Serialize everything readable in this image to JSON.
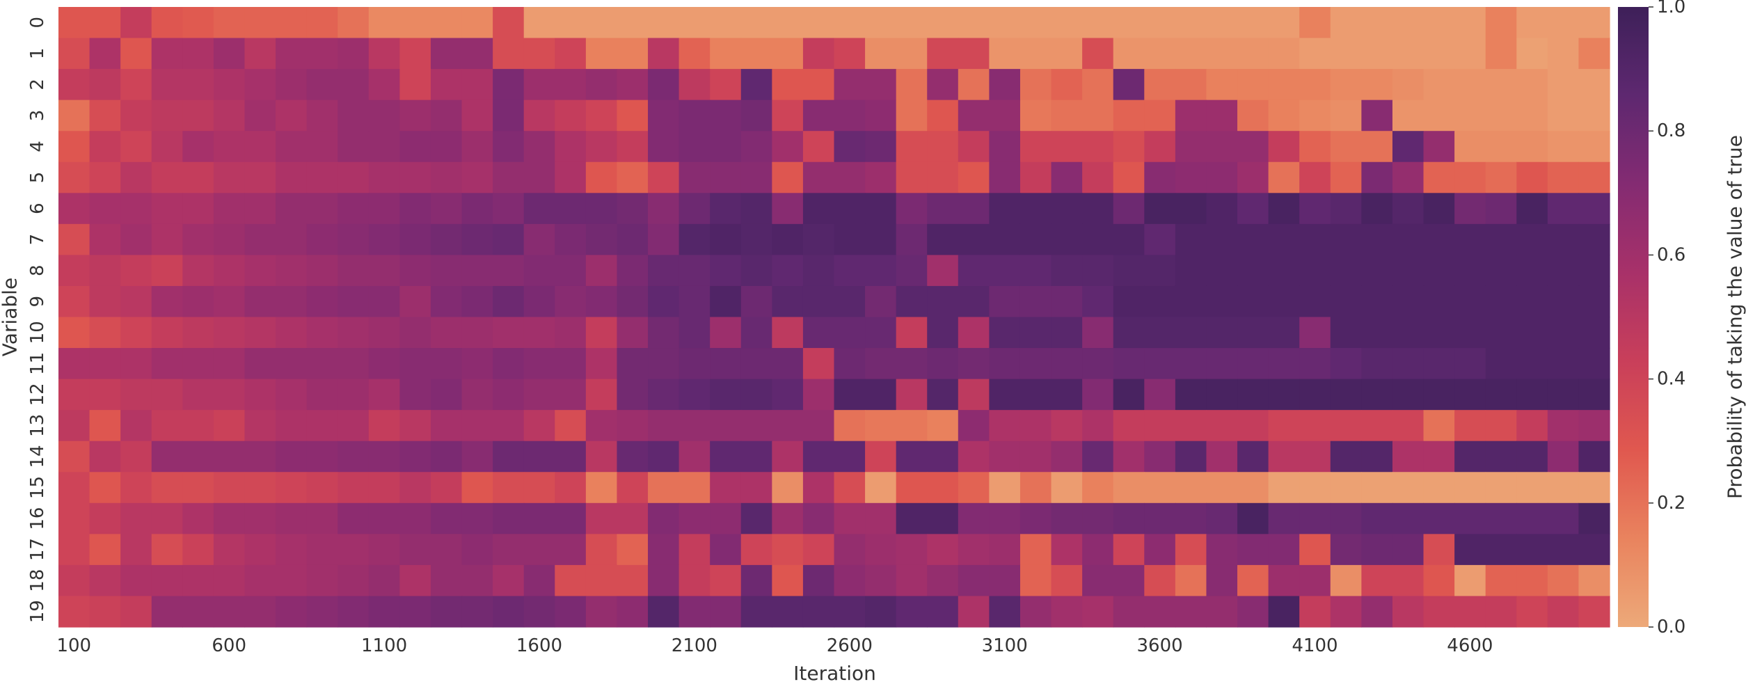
{
  "chart_data": {
    "type": "heatmap",
    "title": "",
    "xlabel": "Iteration",
    "ylabel": "Variable",
    "x_ticks": [
      "100",
      "600",
      "1100",
      "1600",
      "2100",
      "2600",
      "3100",
      "3600",
      "4100",
      "4600"
    ],
    "y_ticks": [
      "0",
      "1",
      "2",
      "3",
      "4",
      "5",
      "6",
      "7",
      "8",
      "9",
      "10",
      "11",
      "12",
      "13",
      "14",
      "15",
      "16",
      "17",
      "18",
      "19"
    ],
    "colorbar": {
      "label": "Probability of taking the value of true",
      "ticks": [
        "0.0",
        "0.2",
        "0.4",
        "0.6",
        "0.8",
        "1.0"
      ],
      "range": [
        0,
        1
      ],
      "colormap": "flare",
      "stops": [
        "#eda979",
        "#e9835e",
        "#e0584f",
        "#c93f5a",
        "#a83169",
        "#842b72",
        "#5e2870",
        "#3e2059"
      ]
    },
    "iterations": {
      "start": 100,
      "step": 100,
      "count": 50
    },
    "grid": false,
    "legend_position": "right",
    "matrix": [
      [
        0.3,
        0.3,
        0.45,
        0.3,
        0.28,
        0.25,
        0.25,
        0.25,
        0.25,
        0.2,
        0.12,
        0.12,
        0.12,
        0.12,
        0.35,
        0.05,
        0.05,
        0.05,
        0.05,
        0.05,
        0.05,
        0.05,
        0.05,
        0.05,
        0.05,
        0.05,
        0.05,
        0.05,
        0.05,
        0.05,
        0.05,
        0.05,
        0.05,
        0.05,
        0.05,
        0.05,
        0.05,
        0.05,
        0.05,
        0.05,
        0.15,
        0.05,
        0.05,
        0.05,
        0.05,
        0.05,
        0.15,
        0.05,
        0.05,
        0.05
      ],
      [
        0.35,
        0.55,
        0.3,
        0.55,
        0.55,
        0.62,
        0.5,
        0.6,
        0.6,
        0.62,
        0.5,
        0.4,
        0.65,
        0.65,
        0.35,
        0.35,
        0.4,
        0.15,
        0.15,
        0.5,
        0.25,
        0.15,
        0.15,
        0.15,
        0.45,
        0.4,
        0.1,
        0.1,
        0.38,
        0.38,
        0.08,
        0.08,
        0.08,
        0.35,
        0.08,
        0.08,
        0.08,
        0.08,
        0.08,
        0.08,
        0.05,
        0.05,
        0.05,
        0.05,
        0.05,
        0.05,
        0.15,
        0.03,
        0.05,
        0.15
      ],
      [
        0.45,
        0.48,
        0.4,
        0.52,
        0.52,
        0.55,
        0.58,
        0.62,
        0.65,
        0.65,
        0.58,
        0.4,
        0.55,
        0.55,
        0.75,
        0.62,
        0.62,
        0.65,
        0.62,
        0.75,
        0.48,
        0.4,
        0.85,
        0.3,
        0.3,
        0.65,
        0.65,
        0.2,
        0.65,
        0.2,
        0.7,
        0.2,
        0.25,
        0.2,
        0.8,
        0.2,
        0.2,
        0.15,
        0.15,
        0.15,
        0.15,
        0.12,
        0.12,
        0.1,
        0.08,
        0.08,
        0.08,
        0.08,
        0.05,
        0.05
      ],
      [
        0.2,
        0.35,
        0.45,
        0.48,
        0.48,
        0.52,
        0.6,
        0.55,
        0.6,
        0.65,
        0.65,
        0.62,
        0.65,
        0.55,
        0.75,
        0.5,
        0.45,
        0.4,
        0.3,
        0.72,
        0.75,
        0.75,
        0.78,
        0.4,
        0.7,
        0.7,
        0.68,
        0.2,
        0.3,
        0.65,
        0.65,
        0.18,
        0.2,
        0.2,
        0.25,
        0.25,
        0.62,
        0.62,
        0.2,
        0.15,
        0.12,
        0.1,
        0.7,
        0.08,
        0.08,
        0.08,
        0.08,
        0.08,
        0.05,
        0.05
      ],
      [
        0.3,
        0.45,
        0.4,
        0.5,
        0.58,
        0.55,
        0.55,
        0.6,
        0.6,
        0.65,
        0.65,
        0.68,
        0.68,
        0.62,
        0.72,
        0.65,
        0.55,
        0.5,
        0.45,
        0.72,
        0.75,
        0.75,
        0.72,
        0.6,
        0.4,
        0.82,
        0.8,
        0.35,
        0.35,
        0.45,
        0.7,
        0.4,
        0.4,
        0.4,
        0.35,
        0.45,
        0.65,
        0.65,
        0.65,
        0.45,
        0.25,
        0.2,
        0.2,
        0.85,
        0.65,
        0.1,
        0.1,
        0.1,
        0.08,
        0.08
      ],
      [
        0.35,
        0.4,
        0.5,
        0.45,
        0.45,
        0.5,
        0.5,
        0.55,
        0.55,
        0.55,
        0.58,
        0.58,
        0.6,
        0.58,
        0.65,
        0.65,
        0.55,
        0.3,
        0.25,
        0.4,
        0.7,
        0.7,
        0.7,
        0.3,
        0.65,
        0.65,
        0.62,
        0.35,
        0.35,
        0.3,
        0.7,
        0.45,
        0.7,
        0.45,
        0.3,
        0.7,
        0.68,
        0.68,
        0.62,
        0.2,
        0.4,
        0.25,
        0.75,
        0.65,
        0.25,
        0.25,
        0.22,
        0.3,
        0.25,
        0.25
      ],
      [
        0.55,
        0.58,
        0.58,
        0.55,
        0.55,
        0.6,
        0.6,
        0.65,
        0.65,
        0.68,
        0.68,
        0.72,
        0.7,
        0.75,
        0.72,
        0.8,
        0.8,
        0.8,
        0.78,
        0.7,
        0.8,
        0.88,
        0.9,
        0.7,
        0.92,
        0.92,
        0.92,
        0.75,
        0.8,
        0.8,
        0.92,
        0.92,
        0.92,
        0.92,
        0.8,
        0.95,
        0.95,
        0.92,
        0.85,
        0.95,
        0.85,
        0.88,
        0.95,
        0.9,
        0.95,
        0.78,
        0.8,
        0.95,
        0.85,
        0.85
      ],
      [
        0.35,
        0.55,
        0.6,
        0.55,
        0.6,
        0.62,
        0.65,
        0.65,
        0.68,
        0.7,
        0.72,
        0.75,
        0.78,
        0.8,
        0.82,
        0.7,
        0.75,
        0.78,
        0.8,
        0.72,
        0.9,
        0.92,
        0.9,
        0.92,
        0.9,
        0.92,
        0.92,
        0.8,
        0.92,
        0.92,
        0.92,
        0.92,
        0.92,
        0.92,
        0.92,
        0.85,
        0.92,
        0.92,
        0.92,
        0.92,
        0.92,
        0.92,
        0.92,
        0.92,
        0.92,
        0.92,
        0.92,
        0.92,
        0.92,
        0.92
      ],
      [
        0.45,
        0.48,
        0.45,
        0.42,
        0.52,
        0.55,
        0.58,
        0.6,
        0.62,
        0.65,
        0.65,
        0.68,
        0.7,
        0.7,
        0.7,
        0.72,
        0.72,
        0.62,
        0.75,
        0.82,
        0.82,
        0.85,
        0.88,
        0.85,
        0.88,
        0.85,
        0.85,
        0.82,
        0.6,
        0.85,
        0.85,
        0.85,
        0.88,
        0.88,
        0.9,
        0.9,
        0.92,
        0.92,
        0.92,
        0.92,
        0.92,
        0.92,
        0.92,
        0.92,
        0.92,
        0.92,
        0.92,
        0.92,
        0.92,
        0.92
      ],
      [
        0.4,
        0.48,
        0.5,
        0.6,
        0.62,
        0.6,
        0.65,
        0.65,
        0.68,
        0.7,
        0.7,
        0.62,
        0.72,
        0.75,
        0.8,
        0.75,
        0.7,
        0.72,
        0.78,
        0.85,
        0.82,
        0.92,
        0.8,
        0.88,
        0.88,
        0.88,
        0.78,
        0.88,
        0.88,
        0.88,
        0.8,
        0.8,
        0.8,
        0.85,
        0.92,
        0.92,
        0.92,
        0.92,
        0.92,
        0.92,
        0.92,
        0.92,
        0.92,
        0.92,
        0.92,
        0.92,
        0.92,
        0.92,
        0.92,
        0.92
      ],
      [
        0.3,
        0.35,
        0.4,
        0.45,
        0.48,
        0.5,
        0.52,
        0.55,
        0.58,
        0.6,
        0.62,
        0.65,
        0.62,
        0.62,
        0.6,
        0.6,
        0.62,
        0.45,
        0.65,
        0.78,
        0.82,
        0.62,
        0.82,
        0.48,
        0.82,
        0.82,
        0.82,
        0.45,
        0.88,
        0.55,
        0.88,
        0.88,
        0.88,
        0.7,
        0.9,
        0.9,
        0.9,
        0.9,
        0.9,
        0.9,
        0.7,
        0.92,
        0.92,
        0.92,
        0.92,
        0.92,
        0.92,
        0.92,
        0.92,
        0.92
      ],
      [
        0.55,
        0.55,
        0.55,
        0.6,
        0.6,
        0.6,
        0.65,
        0.65,
        0.65,
        0.65,
        0.68,
        0.7,
        0.7,
        0.68,
        0.72,
        0.7,
        0.7,
        0.55,
        0.78,
        0.78,
        0.8,
        0.8,
        0.8,
        0.8,
        0.45,
        0.8,
        0.78,
        0.78,
        0.8,
        0.78,
        0.8,
        0.8,
        0.8,
        0.8,
        0.82,
        0.82,
        0.82,
        0.82,
        0.82,
        0.82,
        0.82,
        0.85,
        0.88,
        0.88,
        0.88,
        0.88,
        0.92,
        0.92,
        0.92,
        0.92
      ],
      [
        0.45,
        0.45,
        0.48,
        0.48,
        0.52,
        0.52,
        0.55,
        0.58,
        0.62,
        0.62,
        0.58,
        0.7,
        0.72,
        0.65,
        0.68,
        0.65,
        0.65,
        0.45,
        0.78,
        0.82,
        0.85,
        0.88,
        0.88,
        0.85,
        0.62,
        0.92,
        0.92,
        0.5,
        0.9,
        0.48,
        0.92,
        0.92,
        0.92,
        0.72,
        0.95,
        0.7,
        0.95,
        0.95,
        0.95,
        0.95,
        0.95,
        0.95,
        0.95,
        0.95,
        0.95,
        0.95,
        0.95,
        0.95,
        0.95,
        0.95
      ],
      [
        0.48,
        0.3,
        0.52,
        0.45,
        0.45,
        0.42,
        0.52,
        0.55,
        0.55,
        0.55,
        0.45,
        0.5,
        0.58,
        0.58,
        0.58,
        0.5,
        0.35,
        0.6,
        0.62,
        0.65,
        0.65,
        0.65,
        0.65,
        0.65,
        0.65,
        0.2,
        0.18,
        0.18,
        0.15,
        0.68,
        0.55,
        0.55,
        0.5,
        0.55,
        0.45,
        0.45,
        0.45,
        0.45,
        0.45,
        0.4,
        0.4,
        0.4,
        0.4,
        0.4,
        0.2,
        0.35,
        0.35,
        0.45,
        0.6,
        0.62
      ],
      [
        0.35,
        0.5,
        0.45,
        0.65,
        0.65,
        0.65,
        0.65,
        0.68,
        0.68,
        0.7,
        0.7,
        0.72,
        0.75,
        0.7,
        0.8,
        0.8,
        0.8,
        0.5,
        0.82,
        0.85,
        0.6,
        0.85,
        0.85,
        0.55,
        0.85,
        0.85,
        0.4,
        0.85,
        0.85,
        0.55,
        0.6,
        0.6,
        0.65,
        0.82,
        0.6,
        0.7,
        0.88,
        0.6,
        0.88,
        0.5,
        0.5,
        0.9,
        0.9,
        0.55,
        0.55,
        0.9,
        0.9,
        0.9,
        0.68,
        0.92
      ],
      [
        0.4,
        0.3,
        0.4,
        0.35,
        0.35,
        0.38,
        0.38,
        0.4,
        0.42,
        0.45,
        0.45,
        0.5,
        0.45,
        0.3,
        0.35,
        0.35,
        0.4,
        0.15,
        0.4,
        0.2,
        0.2,
        0.55,
        0.55,
        0.1,
        0.55,
        0.35,
        0.05,
        0.3,
        0.3,
        0.25,
        0.05,
        0.2,
        0.05,
        0.15,
        0.1,
        0.1,
        0.1,
        0.1,
        0.1,
        0.03,
        0.03,
        0.03,
        0.03,
        0.03,
        0.03,
        0.03,
        0.03,
        0.03,
        0.03,
        0.03
      ],
      [
        0.4,
        0.45,
        0.5,
        0.5,
        0.55,
        0.6,
        0.6,
        0.62,
        0.62,
        0.68,
        0.68,
        0.68,
        0.72,
        0.72,
        0.75,
        0.75,
        0.75,
        0.5,
        0.5,
        0.72,
        0.68,
        0.68,
        0.88,
        0.62,
        0.7,
        0.6,
        0.6,
        0.92,
        0.92,
        0.72,
        0.72,
        0.75,
        0.78,
        0.78,
        0.8,
        0.8,
        0.8,
        0.82,
        0.95,
        0.82,
        0.82,
        0.82,
        0.85,
        0.85,
        0.85,
        0.85,
        0.85,
        0.85,
        0.85,
        0.95
      ],
      [
        0.4,
        0.3,
        0.5,
        0.35,
        0.42,
        0.52,
        0.55,
        0.58,
        0.6,
        0.6,
        0.62,
        0.65,
        0.65,
        0.68,
        0.65,
        0.65,
        0.65,
        0.35,
        0.25,
        0.7,
        0.45,
        0.72,
        0.4,
        0.35,
        0.4,
        0.65,
        0.62,
        0.6,
        0.55,
        0.6,
        0.62,
        0.25,
        0.55,
        0.68,
        0.4,
        0.68,
        0.35,
        0.7,
        0.72,
        0.72,
        0.3,
        0.78,
        0.8,
        0.8,
        0.35,
        0.92,
        0.92,
        0.92,
        0.92,
        0.92
      ],
      [
        0.45,
        0.5,
        0.55,
        0.55,
        0.55,
        0.55,
        0.58,
        0.58,
        0.6,
        0.62,
        0.65,
        0.55,
        0.65,
        0.65,
        0.58,
        0.7,
        0.35,
        0.35,
        0.35,
        0.7,
        0.45,
        0.4,
        0.8,
        0.3,
        0.8,
        0.68,
        0.65,
        0.6,
        0.65,
        0.7,
        0.7,
        0.25,
        0.35,
        0.7,
        0.7,
        0.35,
        0.2,
        0.7,
        0.25,
        0.62,
        0.62,
        0.1,
        0.4,
        0.4,
        0.3,
        0.05,
        0.25,
        0.25,
        0.2,
        0.1
      ],
      [
        0.4,
        0.42,
        0.45,
        0.65,
        0.65,
        0.65,
        0.65,
        0.68,
        0.7,
        0.72,
        0.75,
        0.75,
        0.78,
        0.78,
        0.8,
        0.78,
        0.75,
        0.65,
        0.68,
        0.9,
        0.72,
        0.72,
        0.88,
        0.88,
        0.88,
        0.88,
        0.9,
        0.85,
        0.85,
        0.55,
        0.88,
        0.65,
        0.6,
        0.58,
        0.65,
        0.65,
        0.65,
        0.65,
        0.7,
        0.95,
        0.45,
        0.55,
        0.65,
        0.5,
        0.45,
        0.45,
        0.45,
        0.4,
        0.45,
        0.4
      ]
    ]
  }
}
